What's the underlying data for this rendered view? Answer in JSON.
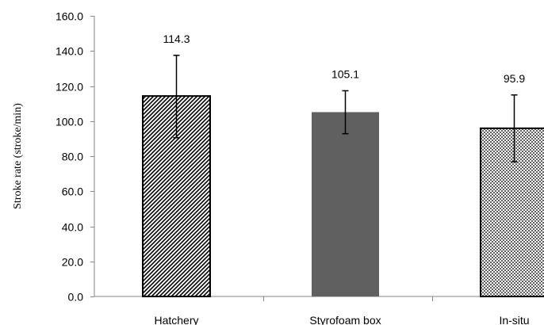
{
  "chart_data": {
    "type": "bar",
    "categories": [
      "Hatchery",
      "Styrofoam box",
      "In-situ"
    ],
    "values": [
      114.3,
      105.1,
      95.9
    ],
    "data_labels": [
      "114.3",
      "105.1",
      "95.9"
    ],
    "error_bars": [
      {
        "low": 90.5,
        "high": 137.5
      },
      {
        "low": 92.8,
        "high": 117.3
      },
      {
        "low": 76.8,
        "high": 114.9
      }
    ],
    "bar_styles": [
      "diagonal-hatch",
      "solid-gray",
      "dotted"
    ],
    "colors": {
      "solid": "#606060",
      "outline": "#000000",
      "axis": "#868686"
    },
    "title": "",
    "xlabel": "",
    "ylabel": "Stroke rate (stroke/min)",
    "ylim": [
      0,
      160
    ],
    "yticks": [
      0,
      20,
      40,
      60,
      80,
      100,
      120,
      140,
      160
    ],
    "ytick_labels": [
      "0.0",
      "20.0",
      "40.0",
      "60.0",
      "80.0",
      "100.0",
      "120.0",
      "140.0",
      "160.0"
    ],
    "grid": false,
    "legend": "none"
  }
}
